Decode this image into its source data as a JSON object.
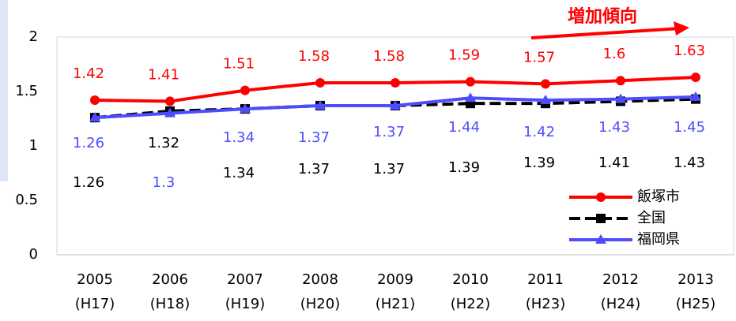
{
  "chart_data": {
    "type": "line",
    "annotation": "増加傾向",
    "categories": [
      "2005",
      "2006",
      "2007",
      "2008",
      "2009",
      "2010",
      "2011",
      "2012",
      "2013"
    ],
    "category_sublabels": [
      "(H17)",
      "(H18)",
      "(H19)",
      "(H20)",
      "(H21)",
      "(H22)",
      "(H23)",
      "(H24)",
      "(H25)"
    ],
    "series": [
      {
        "name": "飯塚市",
        "color": "#ff0000",
        "marker": "circle",
        "dash": false,
        "values": [
          1.42,
          1.41,
          1.51,
          1.58,
          1.58,
          1.59,
          1.57,
          1.6,
          1.63
        ]
      },
      {
        "name": "全国",
        "color": "#000000",
        "marker": "square",
        "dash": true,
        "values": [
          1.26,
          1.32,
          1.34,
          1.37,
          1.37,
          1.39,
          1.39,
          1.41,
          1.43
        ]
      },
      {
        "name": "福岡県",
        "color": "#4d4dff",
        "marker": "triangle",
        "dash": false,
        "values": [
          1.26,
          1.3,
          1.34,
          1.37,
          1.37,
          1.44,
          1.42,
          1.43,
          1.45
        ]
      }
    ],
    "ylim": [
      0,
      2
    ],
    "yticks": [
      0,
      0.5,
      1,
      1.5,
      2
    ],
    "legend": "lower right"
  }
}
